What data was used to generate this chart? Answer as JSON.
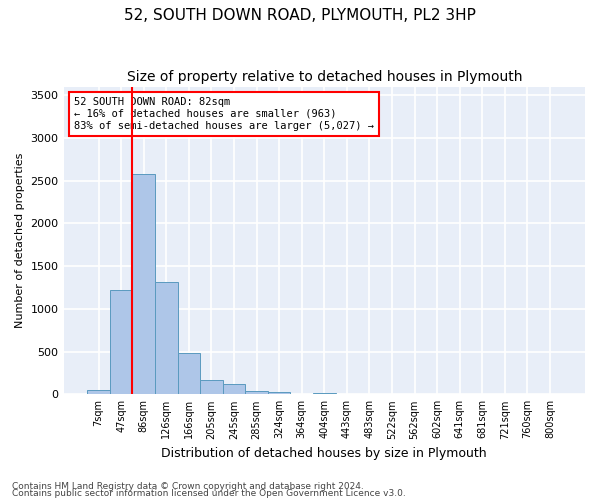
{
  "title": "52, SOUTH DOWN ROAD, PLYMOUTH, PL2 3HP",
  "subtitle": "Size of property relative to detached houses in Plymouth",
  "xlabel": "Distribution of detached houses by size in Plymouth",
  "ylabel": "Number of detached properties",
  "bins": [
    "7sqm",
    "47sqm",
    "86sqm",
    "126sqm",
    "166sqm",
    "205sqm",
    "245sqm",
    "285sqm",
    "324sqm",
    "364sqm",
    "404sqm",
    "443sqm",
    "483sqm",
    "522sqm",
    "562sqm",
    "602sqm",
    "641sqm",
    "681sqm",
    "721sqm",
    "760sqm",
    "800sqm"
  ],
  "bar_values": [
    50,
    1220,
    2580,
    1310,
    480,
    170,
    120,
    40,
    25,
    0,
    10,
    5,
    0,
    0,
    0,
    0,
    0,
    0,
    0,
    0,
    0
  ],
  "bar_color": "#aec6e8",
  "bar_edge_color": "#5a9abf",
  "background_color": "#e8eef8",
  "grid_color": "#ffffff",
  "vline_color": "red",
  "vline_pos": 1.5,
  "annotation_text": "52 SOUTH DOWN ROAD: 82sqm\n← 16% of detached houses are smaller (963)\n83% of semi-detached houses are larger (5,027) →",
  "annotation_box_color": "white",
  "annotation_box_edge": "red",
  "footer1": "Contains HM Land Registry data © Crown copyright and database right 2024.",
  "footer2": "Contains public sector information licensed under the Open Government Licence v3.0.",
  "ylim": [
    0,
    3600
  ],
  "yticks": [
    0,
    500,
    1000,
    1500,
    2000,
    2500,
    3000,
    3500
  ]
}
